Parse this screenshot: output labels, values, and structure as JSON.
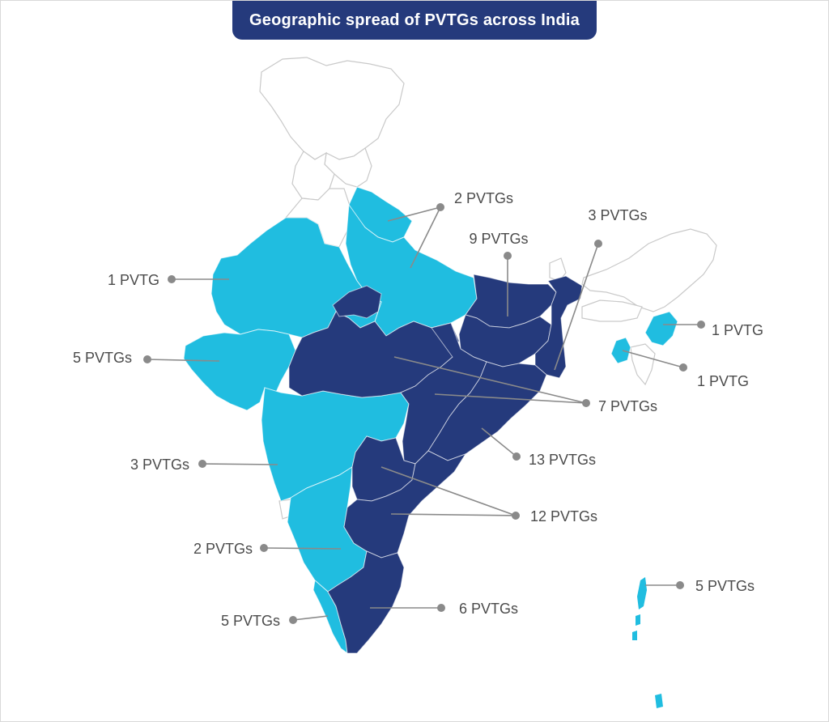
{
  "title": "Geographic spread of PVTGs across India",
  "colors": {
    "title_bg": "#253a7c",
    "title_text": "#ffffff",
    "dark_region": "#253a7c",
    "light_region": "#20bde0",
    "no_pvtg_region": "#ffffff",
    "leader": "#8a8a8a",
    "label_text": "#4b4b4b"
  },
  "callouts": [
    {
      "id": "uttarakhand",
      "label": "2 PVTGs"
    },
    {
      "id": "rajasthan",
      "label": "1 PVTG"
    },
    {
      "id": "gujarat",
      "label": "5 PVTGs"
    },
    {
      "id": "maharashtra",
      "label": "3 PVTGs"
    },
    {
      "id": "karnataka",
      "label": "2 PVTGs"
    },
    {
      "id": "kerala",
      "label": "5 PVTGs"
    },
    {
      "id": "bihar",
      "label": "9 PVTGs"
    },
    {
      "id": "west-bengal",
      "label": "3 PVTGs"
    },
    {
      "id": "manipur",
      "label": "1  PVTG"
    },
    {
      "id": "tripura",
      "label": "1 PVTG"
    },
    {
      "id": "mp-chhattisgarh",
      "label": "7 PVTGs"
    },
    {
      "id": "odisha",
      "label": "13 PVTGs"
    },
    {
      "id": "andhra-telangana",
      "label": "12 PVTGs"
    },
    {
      "id": "tamil-nadu",
      "label": "6 PVTGs"
    },
    {
      "id": "andaman-nicobar",
      "label": "5 PVTGs"
    }
  ]
}
